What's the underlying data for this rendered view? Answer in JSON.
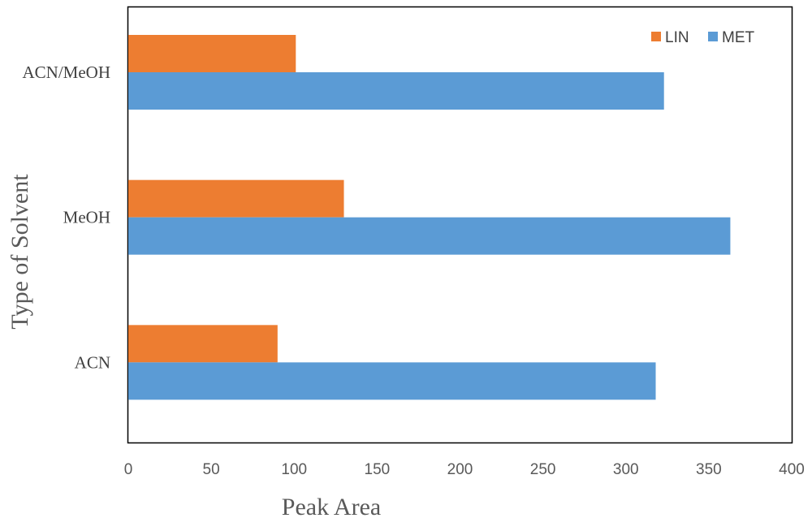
{
  "chart_data": {
    "type": "bar",
    "orientation": "horizontal",
    "categories": [
      "ACN/MeOH",
      "MeOH",
      "ACN"
    ],
    "series": [
      {
        "name": "LIN",
        "color": "#ED7D31",
        "values": [
          101,
          130,
          90
        ]
      },
      {
        "name": "MET",
        "color": "#5B9BD5",
        "values": [
          323,
          363,
          318
        ]
      }
    ],
    "xlabel": "Peak Area",
    "ylabel": "Type of Solvent",
    "xlim": [
      0,
      400
    ],
    "xticks": [
      0,
      50,
      100,
      150,
      200,
      250,
      300,
      350,
      400
    ],
    "grid": false,
    "legend_position": "top-right",
    "plot_border": true
  }
}
